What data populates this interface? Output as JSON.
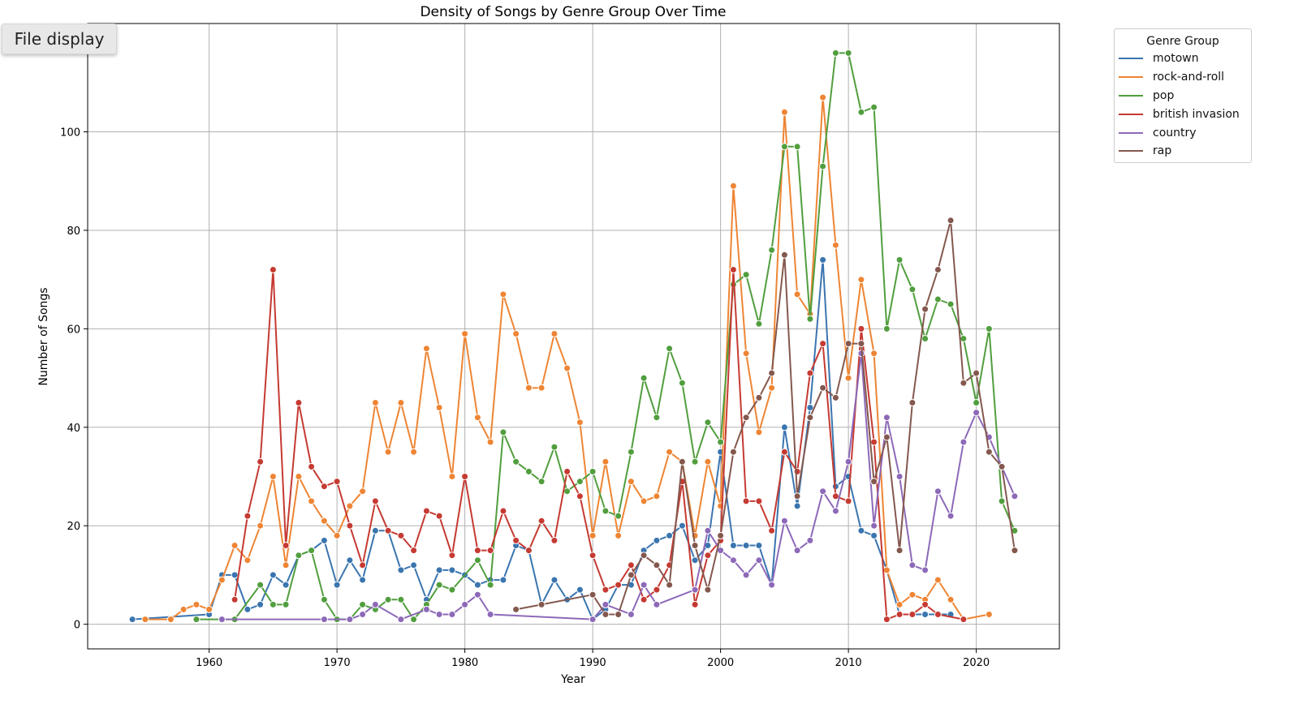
{
  "ui": {
    "file_button_label": "File display"
  },
  "chart_data": {
    "type": "line",
    "title": "Density of Songs by Genre Group Over Time",
    "xlabel": "Year",
    "ylabel": "Number of Songs",
    "xlim": [
      1950.5,
      2026.5
    ],
    "ylim": [
      -5,
      122
    ],
    "xticks": [
      1960,
      1970,
      1980,
      1990,
      2000,
      2010,
      2020
    ],
    "yticks": [
      0,
      20,
      40,
      60,
      80,
      100
    ],
    "grid": true,
    "markers": true,
    "legend": {
      "title": "Genre Group",
      "placement": "outside-top-right"
    },
    "series": [
      {
        "name": "motown",
        "color": "#3a75af",
        "x": [
          1954,
          1960,
          1961,
          1962,
          1963,
          1964,
          1965,
          1966,
          1967,
          1968,
          1969,
          1970,
          1971,
          1972,
          1973,
          1974,
          1975,
          1976,
          1977,
          1978,
          1979,
          1980,
          1981,
          1982,
          1983,
          1984,
          1985,
          1986,
          1987,
          1988,
          1989,
          1990,
          1991,
          1992,
          1993,
          1994,
          1995,
          1996,
          1997,
          1998,
          1999,
          2000,
          2001,
          2002,
          2003,
          2004,
          2005,
          2006,
          2007,
          2008,
          2009,
          2010,
          2011,
          2012,
          2013,
          2014,
          2016,
          2018
        ],
        "y": [
          1,
          2,
          10,
          10,
          3,
          4,
          10,
          8,
          14,
          15,
          17,
          8,
          13,
          9,
          19,
          19,
          11,
          12,
          5,
          11,
          11,
          10,
          8,
          9,
          9,
          16,
          15,
          4,
          9,
          5,
          7,
          1,
          3,
          8,
          8,
          15,
          17,
          18,
          20,
          13,
          16,
          35,
          16,
          16,
          16,
          8,
          40,
          24,
          44,
          74,
          28,
          30,
          19,
          18,
          11,
          2,
          2,
          2
        ]
      },
      {
        "name": "rock-and-roll",
        "color": "#ee8534",
        "x": [
          1955,
          1957,
          1958,
          1959,
          1960,
          1961,
          1962,
          1963,
          1964,
          1965,
          1966,
          1967,
          1968,
          1969,
          1970,
          1971,
          1972,
          1973,
          1974,
          1975,
          1976,
          1977,
          1978,
          1979,
          1980,
          1981,
          1982,
          1983,
          1984,
          1985,
          1986,
          1987,
          1988,
          1989,
          1990,
          1991,
          1992,
          1993,
          1994,
          1995,
          1996,
          1997,
          1998,
          1999,
          2000,
          2001,
          2002,
          2003,
          2004,
          2005,
          2006,
          2007,
          2008,
          2009,
          2010,
          2011,
          2012,
          2013,
          2014,
          2015,
          2016,
          2017,
          2018,
          2019,
          2021
        ],
        "y": [
          1,
          1,
          3,
          4,
          3,
          9,
          16,
          13,
          20,
          30,
          12,
          30,
          25,
          21,
          18,
          24,
          27,
          45,
          35,
          45,
          35,
          56,
          44,
          30,
          59,
          42,
          37,
          67,
          59,
          48,
          48,
          59,
          52,
          41,
          18,
          33,
          18,
          29,
          25,
          26,
          35,
          33,
          18,
          33,
          24,
          89,
          55,
          39,
          48,
          104,
          67,
          63,
          107,
          77,
          50,
          70,
          55,
          11,
          4,
          6,
          5,
          9,
          5,
          1,
          2
        ]
      },
      {
        "name": "pop",
        "color": "#519e3e",
        "x": [
          1959,
          1962,
          1964,
          1965,
          1966,
          1967,
          1968,
          1969,
          1970,
          1971,
          1972,
          1973,
          1974,
          1975,
          1976,
          1977,
          1978,
          1979,
          1981,
          1982,
          1983,
          1984,
          1985,
          1986,
          1987,
          1988,
          1989,
          1990,
          1991,
          1992,
          1993,
          1994,
          1995,
          1996,
          1997,
          1998,
          1999,
          2000,
          2001,
          2002,
          2003,
          2004,
          2005,
          2006,
          2007,
          2008,
          2009,
          2010,
          2011,
          2012,
          2013,
          2014,
          2015,
          2016,
          2017,
          2018,
          2019,
          2020,
          2021,
          2022,
          2023
        ],
        "y": [
          1,
          1,
          8,
          4,
          4,
          14,
          15,
          5,
          1,
          1,
          4,
          3,
          5,
          5,
          1,
          4,
          8,
          7,
          13,
          8,
          39,
          33,
          31,
          29,
          36,
          27,
          29,
          31,
          23,
          22,
          35,
          50,
          42,
          56,
          49,
          33,
          41,
          37,
          69,
          71,
          61,
          76,
          97,
          97,
          62,
          93,
          116,
          116,
          104,
          105,
          60,
          74,
          68,
          58,
          66,
          65,
          58,
          45,
          60,
          25,
          19
        ]
      },
      {
        "name": "british invasion",
        "color": "#c53a32",
        "x": [
          1962,
          1963,
          1964,
          1965,
          1966,
          1967,
          1968,
          1969,
          1970,
          1971,
          1972,
          1973,
          1974,
          1975,
          1976,
          1977,
          1978,
          1979,
          1980,
          1981,
          1982,
          1983,
          1984,
          1985,
          1986,
          1987,
          1988,
          1989,
          1990,
          1991,
          1992,
          1993,
          1994,
          1995,
          1996,
          1997,
          1998,
          1999,
          2000,
          2001,
          2002,
          2003,
          2004,
          2005,
          2006,
          2007,
          2008,
          2009,
          2010,
          2011,
          2012,
          2013,
          2014,
          2015,
          2016,
          2017,
          2019
        ],
        "y": [
          5,
          22,
          33,
          72,
          16,
          45,
          32,
          28,
          29,
          20,
          12,
          25,
          19,
          18,
          15,
          23,
          22,
          14,
          30,
          15,
          15,
          23,
          17,
          15,
          21,
          17,
          31,
          26,
          14,
          7,
          8,
          12,
          5,
          7,
          12,
          29,
          4,
          14,
          17,
          72,
          25,
          25,
          19,
          35,
          31,
          51,
          57,
          26,
          25,
          60,
          37,
          1,
          2,
          2,
          4,
          2,
          1
        ]
      },
      {
        "name": "country",
        "color": "#8d69b8",
        "x": [
          1961,
          1969,
          1971,
          1972,
          1973,
          1975,
          1977,
          1978,
          1979,
          1980,
          1981,
          1982,
          1990,
          1991,
          1993,
          1994,
          1995,
          1998,
          1999,
          2000,
          2001,
          2002,
          2003,
          2004,
          2005,
          2006,
          2007,
          2008,
          2009,
          2010,
          2011,
          2012,
          2013,
          2014,
          2015,
          2016,
          2017,
          2018,
          2019,
          2020,
          2021,
          2022,
          2023
        ],
        "y": [
          1,
          1,
          1,
          2,
          4,
          1,
          3,
          2,
          2,
          4,
          6,
          2,
          1,
          4,
          2,
          8,
          4,
          7,
          19,
          15,
          13,
          10,
          13,
          8,
          21,
          15,
          17,
          27,
          23,
          33,
          55,
          20,
          42,
          30,
          12,
          11,
          27,
          22,
          37,
          43,
          38,
          32,
          26
        ]
      },
      {
        "name": "rap",
        "color": "#84584e",
        "x": [
          1984,
          1986,
          1990,
          1991,
          1992,
          1993,
          1994,
          1995,
          1996,
          1997,
          1998,
          1999,
          2000,
          2001,
          2002,
          2003,
          2004,
          2005,
          2006,
          2007,
          2008,
          2009,
          2010,
          2011,
          2012,
          2013,
          2014,
          2015,
          2016,
          2017,
          2018,
          2019,
          2020,
          2021,
          2022,
          2023
        ],
        "y": [
          3,
          4,
          6,
          2,
          2,
          10,
          14,
          12,
          8,
          33,
          16,
          7,
          18,
          35,
          42,
          46,
          51,
          75,
          26,
          42,
          48,
          46,
          57,
          57,
          29,
          38,
          15,
          45,
          64,
          72,
          82,
          49,
          51,
          35,
          32,
          15
        ]
      }
    ]
  }
}
